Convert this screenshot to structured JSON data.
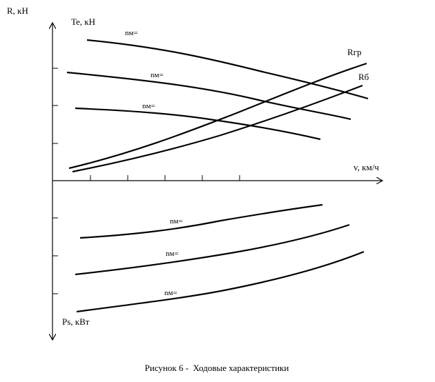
{
  "axes": {
    "y_top_label": "R, кН",
    "y_top_label_2": "Te, кН",
    "x_label": "v, км/ч",
    "y_bottom_label": "Ps, кВт"
  },
  "curves": {
    "te_1": "nм=",
    "te_2": "nм=",
    "te_3": "nм=",
    "r_gr": "Rгр",
    "r_b": "Rб",
    "ps_1": "nм=",
    "ps_2": "nм=",
    "ps_3": "nм="
  },
  "caption": "Рисунок 6 -  Ходовые характеристики"
}
